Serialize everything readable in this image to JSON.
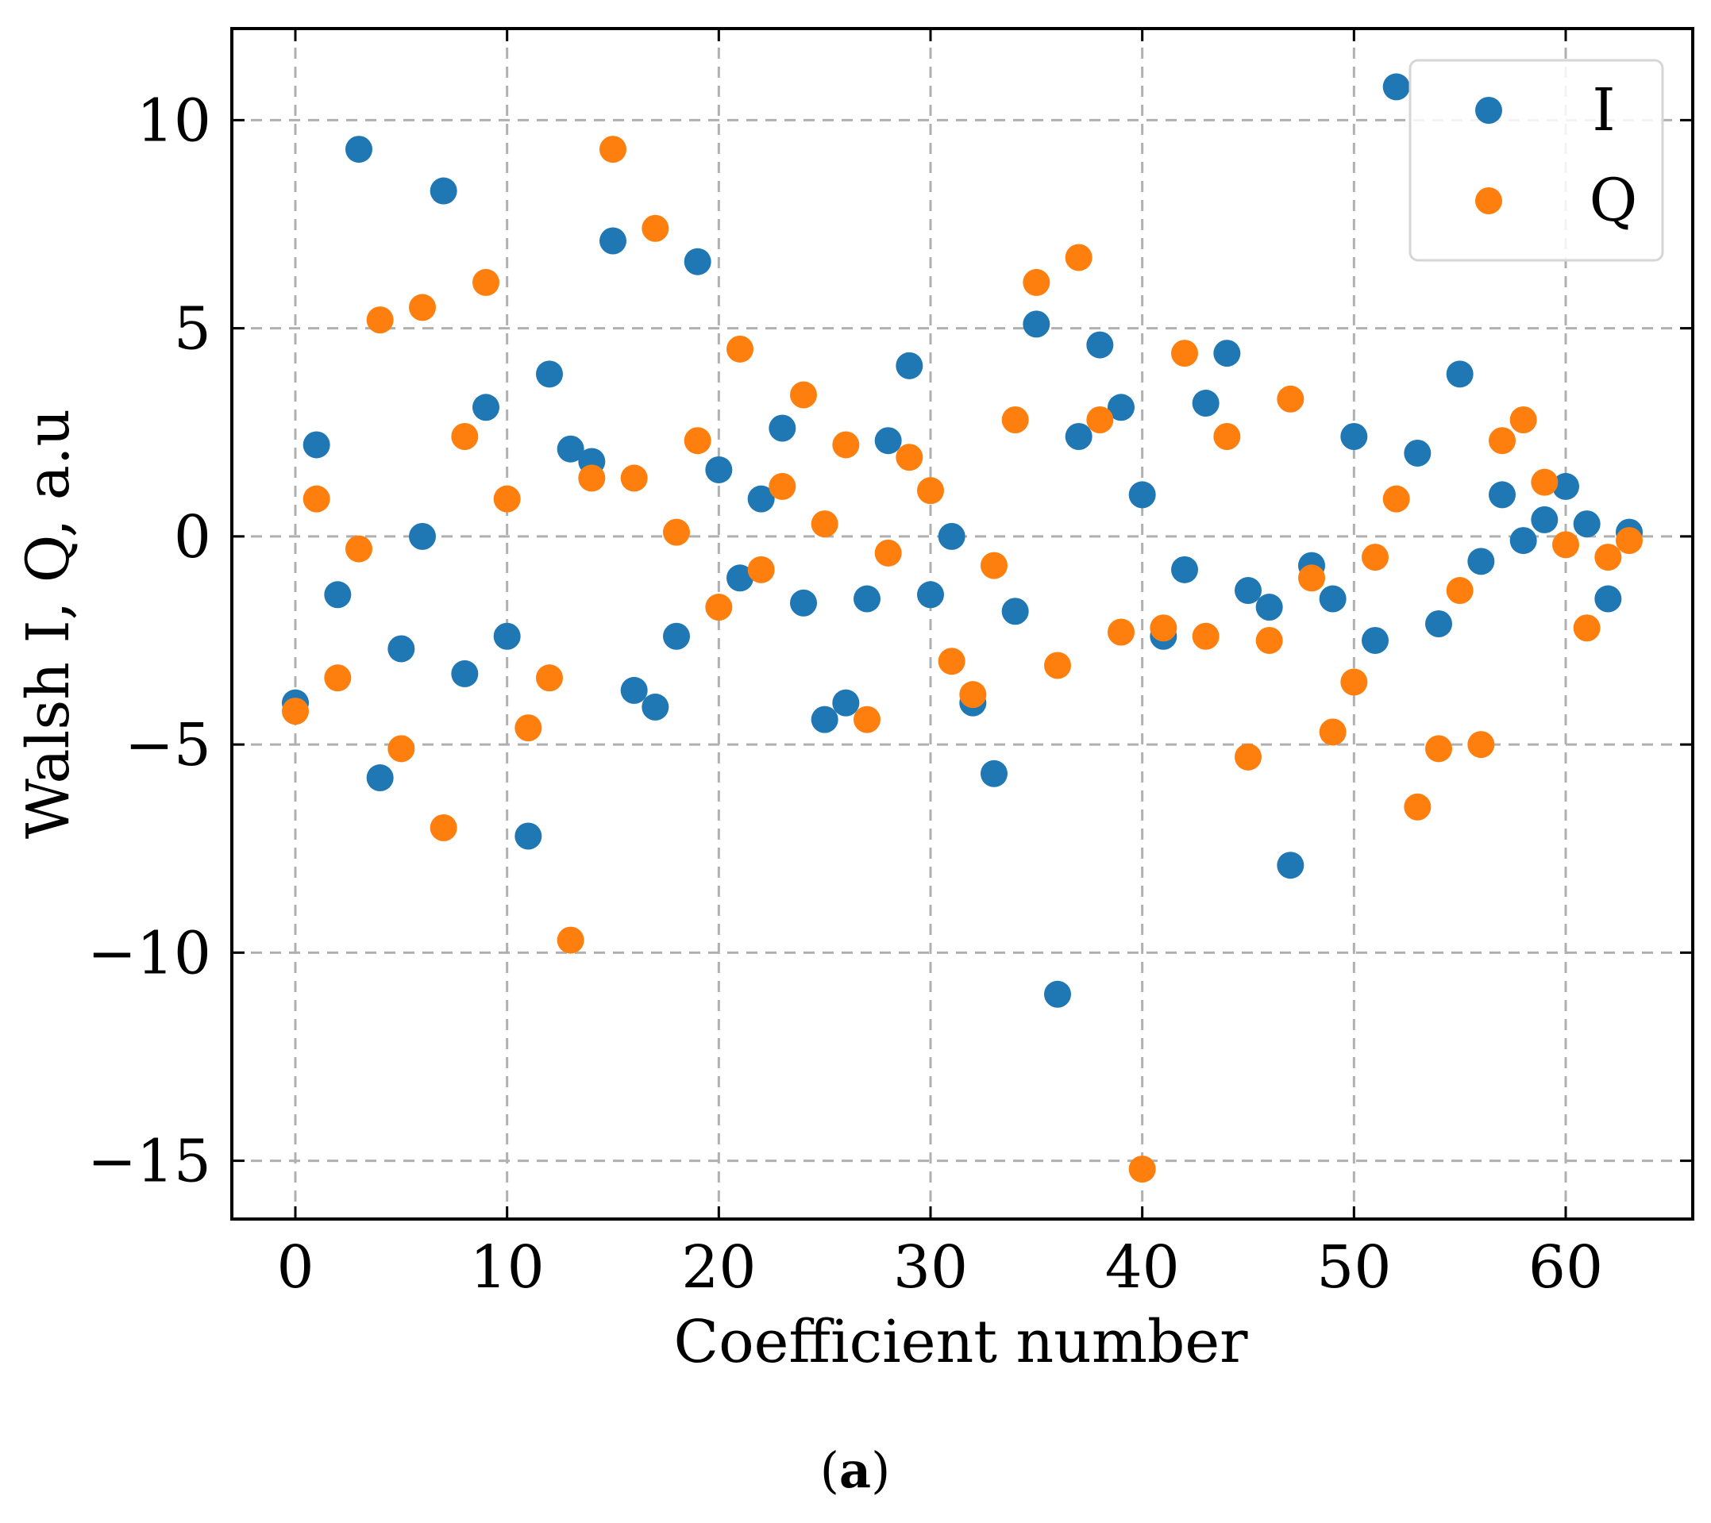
{
  "chart_data": {
    "type": "scatter",
    "title": "",
    "xlabel": "Coefficient number",
    "ylabel": "Walsh I, Q, a.u",
    "xlim": [
      -3,
      66
    ],
    "ylim": [
      -16.4,
      12.2
    ],
    "xticks": [
      0,
      10,
      20,
      30,
      40,
      50,
      60
    ],
    "xtick_labels": [
      "0",
      "10",
      "20",
      "30",
      "40",
      "50",
      "60"
    ],
    "yticks": [
      10,
      5,
      0,
      -5,
      -10,
      -15
    ],
    "ytick_labels": [
      "10",
      "5",
      "0",
      "−5",
      "−10",
      "−15"
    ],
    "grid": true,
    "legend_position": "top-right",
    "series": [
      {
        "name": "I",
        "color": "#1f77b4",
        "x": [
          0,
          1,
          2,
          3,
          4,
          5,
          6,
          7,
          8,
          9,
          10,
          11,
          12,
          13,
          14,
          15,
          16,
          17,
          18,
          19,
          20,
          21,
          22,
          23,
          24,
          25,
          26,
          27,
          28,
          29,
          30,
          31,
          32,
          33,
          34,
          35,
          36,
          37,
          38,
          39,
          40,
          41,
          42,
          43,
          44,
          45,
          46,
          47,
          48,
          49,
          50,
          51,
          52,
          53,
          54,
          55,
          56,
          57,
          58,
          59,
          60,
          61,
          62,
          63
        ],
        "values": [
          -4.0,
          2.2,
          -1.4,
          9.3,
          -5.8,
          -2.7,
          0.0,
          8.3,
          -3.3,
          3.1,
          -2.4,
          -7.2,
          3.9,
          2.1,
          1.8,
          7.1,
          -3.7,
          -4.1,
          -2.4,
          6.6,
          1.6,
          -1.0,
          0.9,
          2.6,
          -1.6,
          -4.4,
          -4.0,
          -1.5,
          2.3,
          4.1,
          -1.4,
          0.0,
          -4.0,
          -5.7,
          -1.8,
          5.1,
          -11.0,
          2.4,
          4.6,
          3.1,
          1.0,
          -2.4,
          -0.8,
          3.2,
          4.4,
          -1.3,
          -1.7,
          -7.9,
          -0.7,
          -1.5,
          2.4,
          -2.5,
          10.8,
          2.0,
          -2.1,
          3.9,
          -0.6,
          1.0,
          -0.1,
          0.4,
          1.2,
          0.3,
          -1.5,
          0.1
        ]
      },
      {
        "name": "Q",
        "color": "#ff7f0e",
        "x": [
          0,
          1,
          2,
          3,
          4,
          5,
          6,
          7,
          8,
          9,
          10,
          11,
          12,
          13,
          14,
          15,
          16,
          17,
          18,
          19,
          20,
          21,
          22,
          23,
          24,
          25,
          26,
          27,
          28,
          29,
          30,
          31,
          32,
          33,
          34,
          35,
          36,
          37,
          38,
          39,
          40,
          41,
          42,
          43,
          44,
          45,
          46,
          47,
          48,
          49,
          50,
          51,
          52,
          53,
          54,
          55,
          56,
          57,
          58,
          59,
          60,
          61,
          62,
          63
        ],
        "values": [
          -4.2,
          0.9,
          -3.4,
          -0.3,
          5.2,
          -5.1,
          5.5,
          -7.0,
          2.4,
          6.1,
          0.9,
          -4.6,
          -3.4,
          -9.7,
          1.4,
          9.3,
          1.4,
          7.4,
          0.1,
          2.3,
          -1.7,
          4.5,
          -0.8,
          1.2,
          3.4,
          0.3,
          2.2,
          -4.4,
          -0.4,
          1.9,
          1.1,
          -3.0,
          -3.8,
          -0.7,
          2.8,
          6.1,
          -3.1,
          6.7,
          2.8,
          -2.3,
          -15.2,
          -2.2,
          4.4,
          -2.4,
          2.4,
          -5.3,
          -2.5,
          3.3,
          -1.0,
          -4.7,
          -3.5,
          -0.5,
          0.9,
          -6.5,
          -5.1,
          -1.3,
          -5.0,
          2.3,
          2.8,
          1.3,
          -0.2,
          -2.2,
          -0.5,
          -0.1
        ]
      }
    ]
  },
  "caption": {
    "open": "(",
    "letter": "a",
    "close": ")"
  }
}
